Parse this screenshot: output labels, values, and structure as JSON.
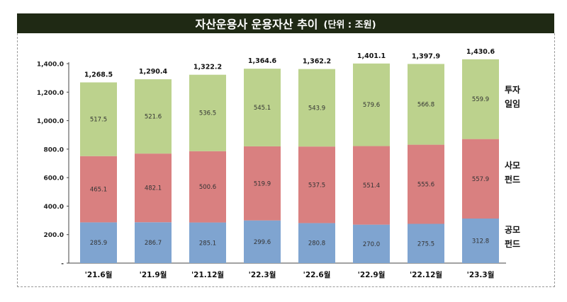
{
  "title": "자산운용사 운용자산 추이",
  "unit": "(단위 : 조원)",
  "chart_data": {
    "type": "bar",
    "stacked": true,
    "categories": [
      "'21.6월",
      "'21.9월",
      "'21.12월",
      "'22.3월",
      "'22.6월",
      "'22.9월",
      "'22.12월",
      "'23.3월"
    ],
    "series": [
      {
        "name": "공모펀드",
        "legend": [
          "공모",
          "펀드"
        ],
        "color": "#7fa4d0",
        "values": [
          285.9,
          286.7,
          285.1,
          299.6,
          280.8,
          270.0,
          275.5,
          312.8
        ]
      },
      {
        "name": "사모펀드",
        "legend": [
          "사모",
          "펀드"
        ],
        "color": "#d98080",
        "values": [
          465.1,
          482.1,
          500.6,
          519.9,
          537.5,
          551.4,
          555.6,
          557.9
        ]
      },
      {
        "name": "투자일임",
        "legend": [
          "투자",
          "일임"
        ],
        "color": "#bcd28d",
        "values": [
          517.5,
          521.6,
          536.5,
          545.1,
          543.9,
          579.6,
          566.8,
          559.9
        ]
      }
    ],
    "totals": [
      1268.5,
      1290.4,
      1322.2,
      1364.6,
      1362.2,
      1401.1,
      1397.9,
      1430.6
    ],
    "yticks": [
      "-",
      "200.0",
      "400.0",
      "600.0",
      "800.0",
      "1,000.0",
      "1,200.0",
      "1,400.0"
    ],
    "ylim": [
      0,
      1400
    ],
    "grid": false,
    "legend_position": "right"
  }
}
